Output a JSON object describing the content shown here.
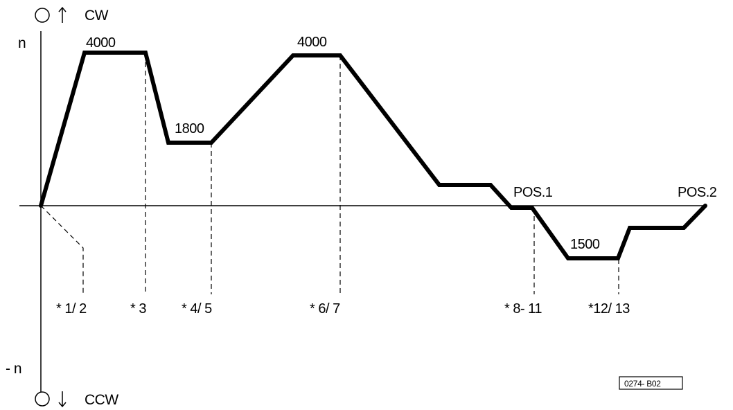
{
  "direction_top": "CW",
  "direction_bottom": "CCW",
  "axis_pos": "n",
  "axis_neg": "- n",
  "speed_labels": [
    "4000",
    "1800",
    "4000",
    "1500"
  ],
  "position_labels": [
    "POS.1",
    "POS.2"
  ],
  "step_labels": [
    "* 1/ 2",
    "* 3",
    "* 4/ 5",
    "* 6/ 7",
    "* 8- 11",
    "*12/ 13"
  ],
  "figure_code": "0274- B02",
  "colors": {
    "line": "#000000",
    "background": "#ffffff"
  }
}
